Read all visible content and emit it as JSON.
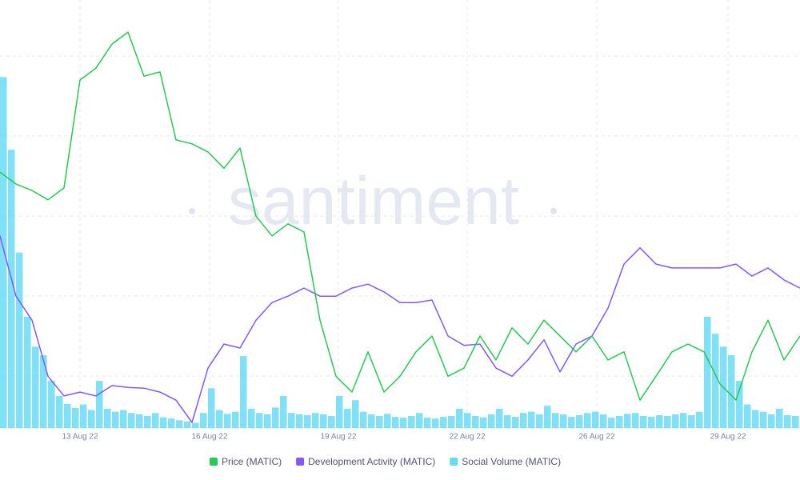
{
  "chart_data": {
    "type": "line",
    "watermark": "santiment",
    "xlim": [
      0,
      50
    ],
    "ylim": [
      0,
      100
    ],
    "xticks": [
      {
        "value": 5,
        "label": "13 Aug 22"
      },
      {
        "value": 13.1,
        "label": "16 Aug 22"
      },
      {
        "value": 21.15,
        "label": "19 Aug 22"
      },
      {
        "value": 29.2,
        "label": "22 Aug 22"
      },
      {
        "value": 37.3,
        "label": "26 Aug 22"
      },
      {
        "value": 45.5,
        "label": "29 Aug 22"
      }
    ],
    "grid": true,
    "legend": "bottom",
    "series": [
      {
        "name": "Social Volume (MATIC)",
        "color": "#68dbf4",
        "type": "bar",
        "values": [
          82,
          65,
          41,
          26,
          19,
          17,
          11,
          7.5,
          5.6,
          4.7,
          5.5,
          4.2,
          11,
          4.5,
          3.8,
          4.2,
          3.5,
          3.2,
          2.8,
          3.5,
          2.5,
          2.2,
          1.8,
          1.5,
          1.2,
          3.5,
          9.3,
          4.2,
          3.3,
          3.8,
          16.8,
          4.5,
          3.5,
          3.2,
          4.8,
          7.5,
          3.5,
          3.2,
          3.0,
          3.5,
          3.2,
          2.8,
          7.5,
          4.5,
          6.5,
          3.8,
          3.2,
          2.8,
          3.3,
          2.6,
          2.4,
          2.8,
          3.5,
          2.4,
          2.2,
          2.6,
          2.8,
          4.5,
          3.5,
          2.8,
          2.5,
          3.2,
          4.5,
          3.0,
          2.6,
          3.5,
          3.8,
          3.2,
          5.2,
          3.5,
          3.2,
          2.6,
          3.0,
          3.5,
          3.8,
          3.2,
          2.4,
          2.8,
          3.3,
          3.5,
          2.8,
          2.6,
          3.0,
          2.8,
          3.2,
          3.5,
          3.0,
          3.8,
          26,
          22,
          19,
          17,
          11,
          5.5,
          4.2,
          3.8,
          3.2,
          4.5,
          3.0,
          2.8
        ]
      },
      {
        "name": "Development Activity (MATIC)",
        "color": "#8358ff",
        "type": "line",
        "values": [
          44.9,
          30.8,
          25.2,
          12.1,
          7.5,
          8.4,
          7.5,
          9.9,
          9.5,
          9.3,
          8.4,
          6.5,
          1.3,
          14.0,
          19.6,
          18.7,
          25.2,
          29.3,
          30.8,
          32.7,
          30.8,
          30.8,
          32.7,
          33.6,
          31.8,
          29.3,
          29.3,
          29.9,
          21.5,
          19.3,
          19.6,
          14.0,
          12.1,
          15.9,
          20.6,
          13.1,
          19.6,
          21.5,
          28.0,
          38.3,
          42.1,
          38.3,
          37.4,
          37.4,
          37.4,
          37.4,
          38.3,
          35.5,
          37.4,
          34.6,
          32.7
        ]
      },
      {
        "name": "Price (MATIC)",
        "color": "#26c953",
        "type": "line",
        "values": [
          59.8,
          57.0,
          55.5,
          53.3,
          56.1,
          81.3,
          84.1,
          89.7,
          92.5,
          82.2,
          83.2,
          67.3,
          66.4,
          64.5,
          60.7,
          65.4,
          49.5,
          44.9,
          47.7,
          45.8,
          25.2,
          12.1,
          8.4,
          17.8,
          8.4,
          12.1,
          17.8,
          21.5,
          12.1,
          14.0,
          21.5,
          15.9,
          23.4,
          19.6,
          25.2,
          21.5,
          17.8,
          21.5,
          15.9,
          17.8,
          6.5,
          12.1,
          17.8,
          19.6,
          17.8,
          10.3,
          6.5,
          17.8,
          25.2,
          15.9,
          21.5
        ]
      }
    ],
    "legend_order": [
      "Price (MATIC)",
      "Development Activity (MATIC)",
      "Social Volume (MATIC)"
    ]
  }
}
